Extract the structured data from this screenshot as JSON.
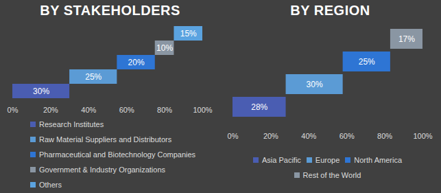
{
  "chart_data": [
    {
      "type": "waterfall",
      "title": "BY STAKEHOLDERS",
      "orientation": "horizontal",
      "categories": [
        "Research Institutes",
        "Raw Material Suppliers and Distributors",
        "Pharmaceutical and Biotechnology Companies",
        "Government & Industry Organizations",
        "Others"
      ],
      "values": [
        30,
        25,
        20,
        10,
        15
      ],
      "value_labels": [
        "30%",
        "25%",
        "20%",
        "10%",
        "15%"
      ],
      "colors": [
        "#4a5db2",
        "#5b9bd5",
        "#2e75d4",
        "#8a96a3",
        "#5ba3e0"
      ],
      "xlim": [
        0,
        100
      ],
      "xticks": [
        {
          "value": 0,
          "label": "0%"
        },
        {
          "value": 20,
          "label": "20%"
        },
        {
          "value": 40,
          "label": "40%"
        },
        {
          "value": 60,
          "label": "60%"
        },
        {
          "value": 80,
          "label": "80%"
        },
        {
          "value": 100,
          "label": "100%"
        }
      ],
      "data_labels": true,
      "legend": "bottom",
      "tick_labels": "x",
      "grid": false
    },
    {
      "type": "waterfall",
      "title": "BY REGION",
      "orientation": "horizontal",
      "categories": [
        "Asia Pacific",
        "Europe",
        "North America",
        "Rest of the World"
      ],
      "values": [
        28,
        30,
        25,
        17
      ],
      "value_labels": [
        "28%",
        "30%",
        "25%",
        "17%"
      ],
      "colors": [
        "#4a5db2",
        "#5b9bd5",
        "#2e75d4",
        "#8a96a3"
      ],
      "xlim": [
        0,
        100
      ],
      "xticks": [
        {
          "value": 0,
          "label": "0%"
        },
        {
          "value": 20,
          "label": "20%"
        },
        {
          "value": 40,
          "label": "40%"
        },
        {
          "value": 60,
          "label": "60%"
        },
        {
          "value": 80,
          "label": "80%"
        },
        {
          "value": 100,
          "label": "100%"
        }
      ],
      "data_labels": true,
      "legend": "bottom",
      "tick_labels": "x",
      "grid": false
    }
  ]
}
